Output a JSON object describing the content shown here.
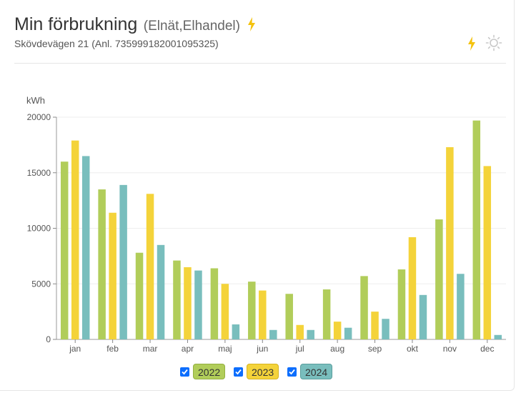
{
  "header": {
    "title": "Min förbrukning",
    "subtitle": "(Elnät,Elhandel)",
    "address": "Skövdevägen 21 (Anl. 735999182001095325)"
  },
  "icons": {
    "title_icon": "lightning-icon",
    "toolbar": [
      "lightning-icon",
      "sun-icon"
    ]
  },
  "colors": {
    "2022": "#b1cd5a",
    "2023": "#f4d33a",
    "2024": "#79bebd",
    "accent": "#f4c20d"
  },
  "legend": [
    {
      "label": "2022",
      "checked": true
    },
    {
      "label": "2023",
      "checked": true
    },
    {
      "label": "2024",
      "checked": true
    }
  ],
  "chart_data": {
    "type": "bar",
    "ylabel": "kWh",
    "ylim": [
      0,
      20000
    ],
    "yticks": [
      "0",
      "5000",
      "10000",
      "15000",
      "20000"
    ],
    "categories": [
      "jan",
      "feb",
      "mar",
      "apr",
      "maj",
      "jun",
      "jul",
      "aug",
      "sep",
      "okt",
      "nov",
      "dec"
    ],
    "series": [
      {
        "name": "2022",
        "values": [
          16000,
          13500,
          7800,
          7100,
          6400,
          5200,
          4100,
          4500,
          5700,
          6300,
          10800,
          19700
        ]
      },
      {
        "name": "2023",
        "values": [
          17900,
          11400,
          13100,
          6500,
          5000,
          4400,
          1300,
          1600,
          2500,
          9200,
          17300,
          15600
        ]
      },
      {
        "name": "2024",
        "values": [
          16500,
          13900,
          8500,
          6200,
          1350,
          850,
          850,
          1050,
          1850,
          4000,
          5900,
          400
        ]
      }
    ],
    "grid": true,
    "legend_position": "bottom-center"
  }
}
